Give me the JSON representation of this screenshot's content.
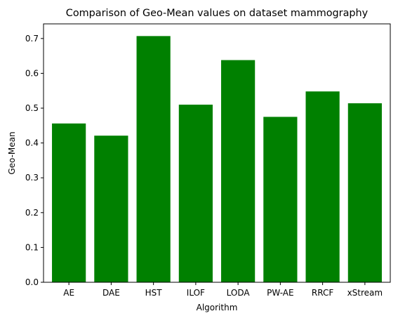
{
  "chart_data": {
    "type": "bar",
    "title": "Comparison of Geo-Mean values on dataset mammography",
    "xlabel": "Algorithm",
    "ylabel": "Geo-Mean",
    "categories": [
      "AE",
      "DAE",
      "HST",
      "ILOF",
      "LODA",
      "PW-AE",
      "RRCF",
      "xStream"
    ],
    "values": [
      0.456,
      0.421,
      0.707,
      0.51,
      0.638,
      0.475,
      0.548,
      0.514
    ],
    "ylim": [
      0,
      0.742
    ],
    "yticks": [
      0.0,
      0.1,
      0.2,
      0.3,
      0.4,
      0.5,
      0.6,
      0.7
    ],
    "ytick_labels": [
      "0.0",
      "0.1",
      "0.2",
      "0.3",
      "0.4",
      "0.5",
      "0.6",
      "0.7"
    ],
    "bar_color": "#008000",
    "grid": false,
    "legend": "none"
  }
}
